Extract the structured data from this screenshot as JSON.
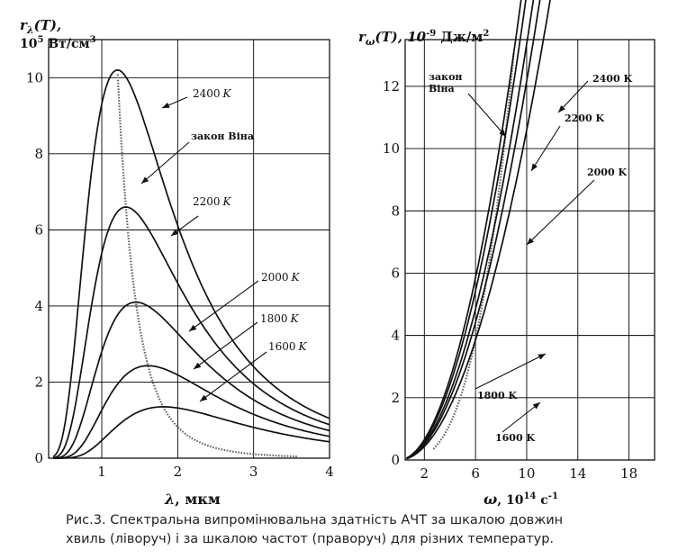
{
  "figure": {
    "caption_line1": "Рис.3. Спектральна випромінювальна здатність АЧТ за шкалою довжин",
    "caption_line2": "хвиль (ліворуч) і за шкалою частот (праворуч) для різних температур."
  },
  "chart_data": [
    {
      "type": "line",
      "ylabel_line1": "r",
      "ylabel_sub": "λ",
      "ylabel_rest": "(T),",
      "ylabel_line2": "10",
      "ylabel_line2_sup": "5",
      "ylabel_unit": " Вт/см",
      "ylabel_unit_sup": "3",
      "xlabel": "λ",
      "xlabel_unit": ", мкм",
      "xlim": [
        0.3,
        4.0
      ],
      "ylim": [
        0,
        11
      ],
      "xticks": [
        1,
        2,
        3,
        4
      ],
      "xtick_labels": [
        "1",
        "2",
        "3",
        "4"
      ],
      "yticks": [
        0,
        2,
        4,
        6,
        8,
        10
      ],
      "ytick_labels": [
        "0",
        "2",
        "4",
        "6",
        "8",
        "10"
      ],
      "grid": true,
      "series": [
        {
          "name": "2400 K",
          "label_num": "2400",
          "label_unit": "K",
          "temperature": 2400,
          "peak": [
            1.21,
            10.2
          ]
        },
        {
          "name": "2200 K",
          "label_num": "2200",
          "label_unit": "K",
          "temperature": 2200,
          "peak": [
            1.32,
            6.6
          ]
        },
        {
          "name": "2000 K",
          "label_num": "2000",
          "label_unit": "K",
          "temperature": 2000,
          "peak": [
            1.45,
            4.1
          ]
        },
        {
          "name": "1800 K",
          "label_num": "1800",
          "label_unit": "K",
          "temperature": 1800,
          "peak": [
            1.61,
            2.43
          ]
        },
        {
          "name": "1600 K",
          "label_num": "1600",
          "label_unit": "K",
          "temperature": 1600,
          "peak": [
            1.81,
            1.35
          ]
        }
      ],
      "annotation_wien": "закон Віна"
    },
    {
      "type": "line",
      "ylabel_line1": "r",
      "ylabel_sub": "ω",
      "ylabel_rest": "(T), 10",
      "ylabel_sup": "-9",
      "ylabel_unit": " Дж/м",
      "ylabel_unit_sup": "2",
      "xlabel": "ω",
      "xlabel_mid": ", 10",
      "xlabel_sup": "14",
      "xlabel_unit": " с",
      "xlabel_unit_sup": "-1",
      "xlim": [
        0.5,
        20.0
      ],
      "ylim": [
        0,
        13.5
      ],
      "xticks": [
        2,
        6,
        10,
        14,
        18
      ],
      "xtick_labels": [
        "2",
        "6",
        "10",
        "14",
        "18"
      ],
      "yticks": [
        0,
        2,
        4,
        6,
        8,
        10,
        12
      ],
      "ytick_labels": [
        "0",
        "2",
        "4",
        "6",
        "8",
        "10",
        "12"
      ],
      "grid": true,
      "series": [
        {
          "name": "2400 K",
          "temperature": 2400,
          "peak": [
            9.0,
            13.1
          ]
        },
        {
          "name": "2200 K",
          "temperature": 2200,
          "peak": [
            8.2,
            10.1
          ]
        },
        {
          "name": "2000 K",
          "temperature": 2000,
          "peak": [
            7.5,
            7.55
          ]
        },
        {
          "name": "1800 K",
          "temperature": 1800,
          "peak": [
            6.7,
            5.5
          ]
        },
        {
          "name": "1600 K",
          "temperature": 1600,
          "peak": [
            6.0,
            3.85
          ]
        }
      ],
      "annotation_wien_line1": "закон",
      "annotation_wien_line2": "Віна"
    }
  ]
}
